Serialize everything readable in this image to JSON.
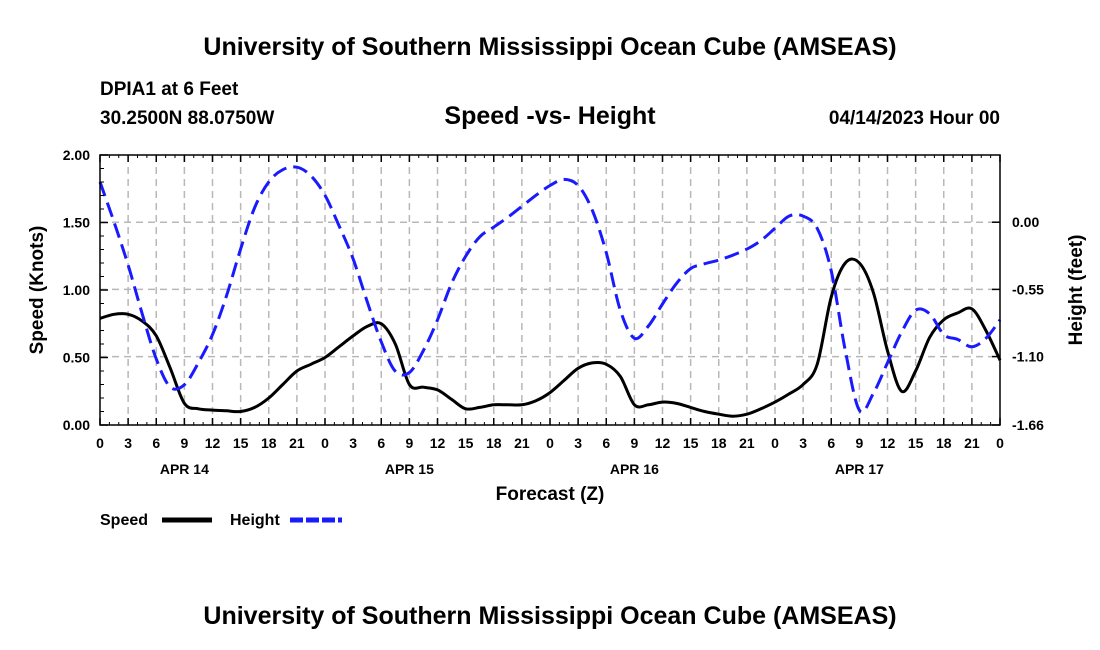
{
  "page": {
    "title_top": "University of Southern Mississippi Ocean Cube (AMSEAS)",
    "title_bottom": "University of Southern Mississippi Ocean Cube (AMSEAS)",
    "station_line": "DPIA1 at 6 Feet",
    "coord_line": "30.2500N  88.0750W",
    "date_line": "04/14/2023 Hour 00"
  },
  "colors": {
    "speed": "#000000",
    "height": "#1a1aff",
    "grid": "#b8b8b8",
    "axis": "#000000"
  },
  "chart_data": {
    "type": "line",
    "title": "Speed -vs- Height",
    "xlabel": "Forecast (Z)",
    "ylabel": "Speed (Knots)",
    "y2label": "Height (feet)",
    "xlim": [
      0,
      96
    ],
    "ylim": [
      0,
      2
    ],
    "y2lim": [
      -1.66,
      0.55
    ],
    "x_ticks": [
      0,
      3,
      6,
      9,
      12,
      15,
      18,
      21,
      24,
      27,
      30,
      33,
      36,
      39,
      42,
      45,
      48,
      51,
      54,
      57,
      60,
      63,
      66,
      69,
      72,
      75,
      78,
      81,
      84,
      87,
      90,
      93,
      96
    ],
    "x_tick_labels": [
      "0",
      "3",
      "6",
      "9",
      "12",
      "15",
      "18",
      "21",
      "0",
      "3",
      "6",
      "9",
      "12",
      "15",
      "18",
      "21",
      "0",
      "3",
      "6",
      "9",
      "12",
      "15",
      "18",
      "21",
      "0",
      "3",
      "6",
      "9",
      "12",
      "15",
      "18",
      "21",
      "0"
    ],
    "day_labels": [
      {
        "label": "APR 14",
        "x": 9
      },
      {
        "label": "APR 15",
        "x": 33
      },
      {
        "label": "APR 16",
        "x": 57
      },
      {
        "label": "APR 17",
        "x": 81
      }
    ],
    "y_ticks": [
      0.0,
      0.5,
      1.0,
      1.5,
      2.0
    ],
    "y_tick_labels": [
      "0.00",
      "0.50",
      "1.00",
      "1.50",
      "2.00"
    ],
    "y2_ticks": [
      -1.66,
      -1.1,
      -0.55,
      0.0
    ],
    "y2_tick_labels": [
      "-1.66",
      "-1.10",
      "-0.55",
      "0.00"
    ],
    "series": [
      {
        "name": "Speed",
        "axis": "left",
        "dash": "solid",
        "x": [
          0,
          1.5,
          3,
          4.5,
          6,
          7.5,
          9,
          10.5,
          12,
          13.5,
          15,
          16.5,
          18,
          19.5,
          21,
          22.5,
          24,
          25.5,
          27,
          28.5,
          30,
          31.5,
          33,
          34.5,
          36,
          37.5,
          39,
          40.5,
          42,
          43.5,
          45,
          46.5,
          48,
          49.5,
          51,
          52.5,
          54,
          55.5,
          57,
          58.5,
          60,
          61.5,
          63,
          64.5,
          66,
          67.5,
          69,
          70.5,
          72,
          73.5,
          75,
          76.5,
          78,
          79.5,
          81,
          82.5,
          84,
          85.5,
          87,
          88.5,
          90,
          91.5,
          93,
          94.5,
          96
        ],
        "y": [
          0.79,
          0.82,
          0.82,
          0.77,
          0.66,
          0.42,
          0.16,
          0.12,
          0.11,
          0.105,
          0.1,
          0.13,
          0.2,
          0.3,
          0.4,
          0.45,
          0.5,
          0.58,
          0.66,
          0.73,
          0.75,
          0.6,
          0.3,
          0.28,
          0.26,
          0.19,
          0.12,
          0.13,
          0.15,
          0.15,
          0.15,
          0.18,
          0.24,
          0.33,
          0.42,
          0.46,
          0.45,
          0.36,
          0.15,
          0.15,
          0.17,
          0.16,
          0.13,
          0.1,
          0.08,
          0.065,
          0.08,
          0.12,
          0.17,
          0.23,
          0.3,
          0.45,
          0.95,
          1.2,
          1.2,
          0.98,
          0.55,
          0.25,
          0.4,
          0.65,
          0.78,
          0.83,
          0.86,
          0.7,
          0.48
        ]
      },
      {
        "name": "Height",
        "axis": "right",
        "dash": "dashed",
        "x": [
          0,
          1.5,
          3,
          4.5,
          6,
          7.5,
          9,
          10.5,
          12,
          13.5,
          15,
          16.5,
          18,
          19.5,
          21,
          22.5,
          24,
          25.5,
          27,
          28.5,
          30,
          31.5,
          33,
          34.5,
          36,
          37.5,
          39,
          40.5,
          42,
          43.5,
          45,
          46.5,
          48,
          49.5,
          51,
          52.5,
          54,
          55.5,
          57,
          58.5,
          60,
          61.5,
          63,
          64.5,
          66,
          67.5,
          69,
          70.5,
          72,
          73.5,
          75,
          76.5,
          78,
          79.5,
          81,
          82.5,
          84,
          85.5,
          87,
          88.5,
          90,
          91.5,
          93,
          94.5,
          96
        ],
        "y": [
          0.33,
          0.0,
          -0.35,
          -0.75,
          -1.12,
          -1.35,
          -1.33,
          -1.15,
          -0.92,
          -0.6,
          -0.22,
          0.12,
          0.33,
          0.43,
          0.45,
          0.38,
          0.22,
          -0.03,
          -0.3,
          -0.65,
          -0.98,
          -1.22,
          -1.23,
          -1.05,
          -0.8,
          -0.5,
          -0.28,
          -0.12,
          -0.04,
          0.04,
          0.13,
          0.22,
          0.3,
          0.35,
          0.3,
          0.1,
          -0.25,
          -0.72,
          -0.95,
          -0.85,
          -0.67,
          -0.5,
          -0.38,
          -0.34,
          -0.31,
          -0.27,
          -0.22,
          -0.15,
          -0.05,
          0.05,
          0.05,
          -0.05,
          -0.4,
          -1.05,
          -1.54,
          -1.4,
          -1.15,
          -0.9,
          -0.72,
          -0.75,
          -0.92,
          -0.96,
          -1.02,
          -0.95,
          -0.8
        ]
      }
    ],
    "legend": [
      {
        "label": "Speed",
        "dash": "solid"
      },
      {
        "label": "Height",
        "dash": "dashed"
      }
    ],
    "grid": true
  }
}
